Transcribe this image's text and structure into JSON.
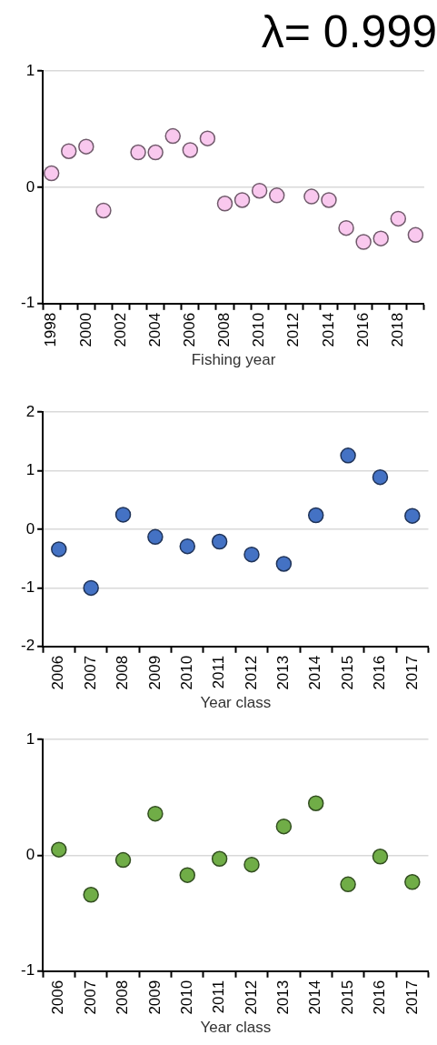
{
  "chart_data": [
    {
      "type": "scatter",
      "title": "λ= 0.999",
      "xlabel": "Fishing year",
      "categories": [
        "1998",
        null,
        "2000",
        null,
        "2002",
        null,
        "2004",
        null,
        "2006",
        null,
        "2008",
        null,
        "2010",
        null,
        "2012",
        null,
        "2014",
        null,
        "2016",
        null,
        "2018",
        null
      ],
      "series": [
        {
          "color": "#f9c8ee",
          "values": [
            0.12,
            0.31,
            0.35,
            -0.2,
            null,
            0.3,
            0.3,
            0.44,
            0.32,
            0.42,
            -0.14,
            -0.11,
            -0.03,
            -0.07,
            null,
            -0.08,
            -0.11,
            -0.35,
            -0.47,
            -0.44,
            -0.27,
            -0.41
          ]
        }
      ],
      "ylim": [
        -1,
        1
      ],
      "yticks": [
        -1,
        0,
        1
      ],
      "grid": "y",
      "marker": "circle"
    },
    {
      "type": "scatter",
      "xlabel": "Year class",
      "categories": [
        "2006",
        "2007",
        "2008",
        "2009",
        "2010",
        "2011",
        "2012",
        "2013",
        "2014",
        "2015",
        "2016",
        "2017"
      ],
      "series": [
        {
          "color": "#4472c4",
          "values": [
            -0.34,
            -1.0,
            0.25,
            -0.13,
            -0.29,
            -0.21,
            -0.43,
            -0.59,
            0.24,
            1.26,
            0.89,
            0.23
          ]
        }
      ],
      "ylim": [
        -2,
        2
      ],
      "yticks": [
        -2,
        -1,
        0,
        1,
        2
      ],
      "grid": "y",
      "marker": "circle"
    },
    {
      "type": "scatter",
      "xlabel": "Year class",
      "categories": [
        "2006",
        "2007",
        "2008",
        "2009",
        "2010",
        "2011",
        "2012",
        "2013",
        "2014",
        "2015",
        "2016",
        "2017"
      ],
      "series": [
        {
          "color": "#70ad47",
          "values": [
            0.05,
            -0.34,
            -0.04,
            0.36,
            -0.17,
            -0.03,
            -0.08,
            0.25,
            0.45,
            -0.25,
            -0.01,
            -0.23
          ]
        }
      ],
      "ylim": [
        -1,
        1
      ],
      "yticks": [
        -1,
        0,
        1
      ],
      "grid": "y",
      "marker": "circle"
    }
  ]
}
